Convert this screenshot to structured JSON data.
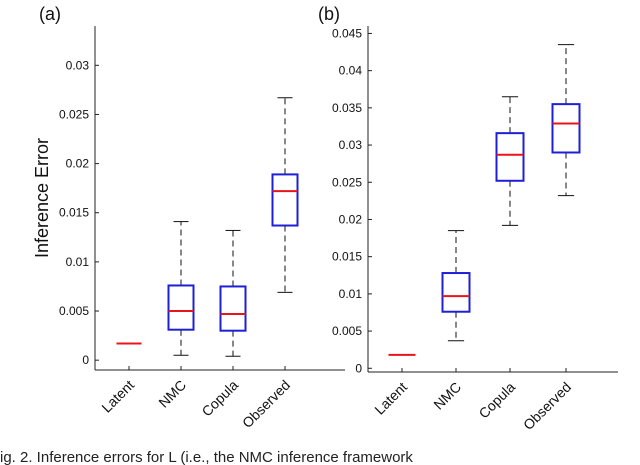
{
  "chart_data": [
    {
      "panel_label": "(a)",
      "type": "box",
      "ylabel": "Inference Error",
      "ylim": [
        -0.001,
        0.034
      ],
      "yticks": [
        0,
        0.005,
        0.01,
        0.015,
        0.02,
        0.025,
        0.03
      ],
      "ytick_labels": [
        "0",
        "0.005",
        "0.01",
        "0.015",
        "0.02",
        "0.025",
        "0.03"
      ],
      "categories": [
        "Latent",
        "NMC",
        "Copula",
        "Observed"
      ],
      "boxes": [
        {
          "whislo": 0.0017,
          "q1": 0.0017,
          "med": 0.0017,
          "q3": 0.0017,
          "whishi": 0.0017
        },
        {
          "whislo": 0.0005,
          "q1": 0.0031,
          "med": 0.005,
          "q3": 0.0076,
          "whishi": 0.0141
        },
        {
          "whislo": 0.0004,
          "q1": 0.003,
          "med": 0.0047,
          "q3": 0.0075,
          "whishi": 0.0132
        },
        {
          "whislo": 0.0069,
          "q1": 0.0137,
          "med": 0.0172,
          "q3": 0.0189,
          "whishi": 0.0267
        }
      ]
    },
    {
      "panel_label": "(b)",
      "type": "box",
      "ylabel": "",
      "ylim": [
        -0.0005,
        0.046
      ],
      "yticks": [
        0,
        0.005,
        0.01,
        0.015,
        0.02,
        0.025,
        0.03,
        0.035,
        0.04,
        0.045
      ],
      "ytick_labels": [
        "0",
        "0.005",
        "0.01",
        "0.015",
        "0.02",
        "0.025",
        "0.03",
        "0.035",
        "0.04",
        "0.045"
      ],
      "categories": [
        "Latent",
        "NMC",
        "Copula",
        "Observed"
      ],
      "boxes": [
        {
          "whislo": 0.0018,
          "q1": 0.0018,
          "med": 0.0018,
          "q3": 0.0018,
          "whishi": 0.0018
        },
        {
          "whislo": 0.0037,
          "q1": 0.0076,
          "med": 0.0097,
          "q3": 0.0128,
          "whishi": 0.0185
        },
        {
          "whislo": 0.0192,
          "q1": 0.0252,
          "med": 0.0287,
          "q3": 0.0316,
          "whishi": 0.0365
        },
        {
          "whislo": 0.0232,
          "q1": 0.029,
          "med": 0.0329,
          "q3": 0.0355,
          "whishi": 0.0435
        }
      ]
    }
  ],
  "colors": {
    "box": "#1f1fd8",
    "median": "#e8151b",
    "whisker": "#111111",
    "axis": "#222222"
  },
  "caption": "ig. 2. Inference errors for  L     (i.e., the NMC inference framework"
}
